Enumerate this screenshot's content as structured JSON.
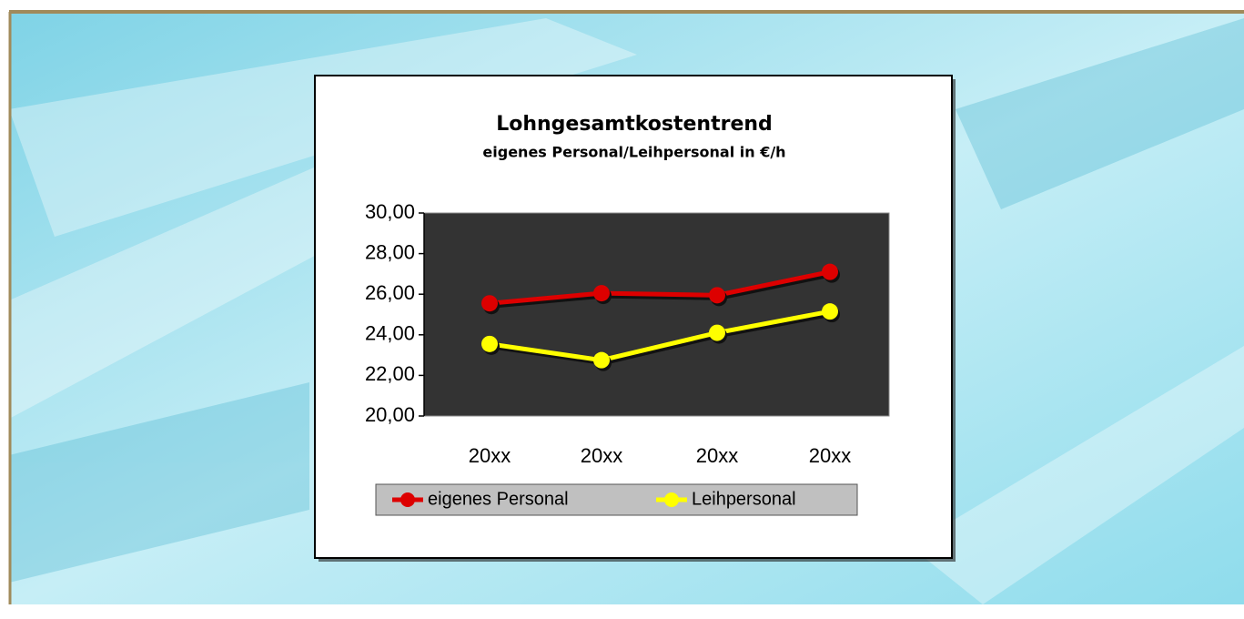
{
  "chart_data": {
    "type": "line",
    "title": "Lohngesamtkostentrend",
    "subtitle": "eigenes Personal/Leihpersonal in €/h",
    "categories": [
      "20xx",
      "20xx",
      "20xx",
      "20xx"
    ],
    "series": [
      {
        "name": "eigenes Personal",
        "color": "#dd0000",
        "values": [
          25.55,
          26.05,
          25.95,
          27.1
        ]
      },
      {
        "name": "Leihpersonal",
        "color": "#ffff00",
        "values": [
          23.55,
          22.75,
          24.1,
          25.15
        ]
      }
    ],
    "ylim": [
      20,
      30
    ],
    "yticks": [
      {
        "value": 20,
        "label": "20,00"
      },
      {
        "value": 22,
        "label": "22,00"
      },
      {
        "value": 24,
        "label": "24,00"
      },
      {
        "value": 26,
        "label": "26,00"
      },
      {
        "value": 28,
        "label": "28,00"
      },
      {
        "value": 30,
        "label": "30,00"
      }
    ],
    "legend": "bottom"
  }
}
